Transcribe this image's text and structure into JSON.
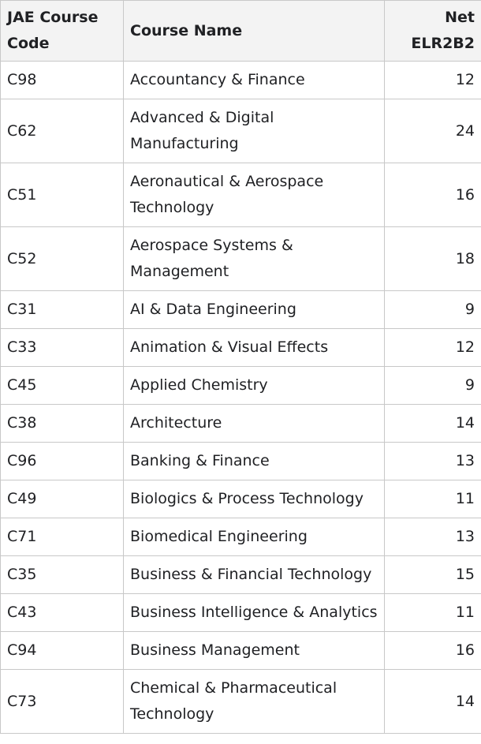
{
  "table": {
    "headers": {
      "code": "JAE Course Code",
      "name": "Course Name",
      "net": "Net ELR2B2"
    },
    "rows": [
      {
        "code": "C98",
        "name": "Accountancy & Finance",
        "net": "12"
      },
      {
        "code": "C62",
        "name": "Advanced & Digital Manufacturing",
        "net": "24"
      },
      {
        "code": "C51",
        "name": "Aeronautical & Aerospace Technology",
        "net": "16"
      },
      {
        "code": "C52",
        "name": "Aerospace Systems & Management",
        "net": "18"
      },
      {
        "code": "C31",
        "name": "AI & Data Engineering",
        "net": "9"
      },
      {
        "code": "C33",
        "name": "Animation & Visual Effects",
        "net": "12"
      },
      {
        "code": "C45",
        "name": "Applied Chemistry",
        "net": "9"
      },
      {
        "code": "C38",
        "name": "Architecture",
        "net": "14"
      },
      {
        "code": "C96",
        "name": "Banking & Finance",
        "net": "13"
      },
      {
        "code": "C49",
        "name": "Biologics & Process Technology",
        "net": "11"
      },
      {
        "code": "C71",
        "name": "Biomedical Engineering",
        "net": "13"
      },
      {
        "code": "C35",
        "name": "Business & Financial Technology",
        "net": "15"
      },
      {
        "code": "C43",
        "name": "Business Intelligence & Analytics",
        "net": "11"
      },
      {
        "code": "C94",
        "name": "Business Management",
        "net": "16"
      },
      {
        "code": "C73",
        "name": "Chemical & Pharmaceutical Technology",
        "net": "14"
      }
    ]
  }
}
